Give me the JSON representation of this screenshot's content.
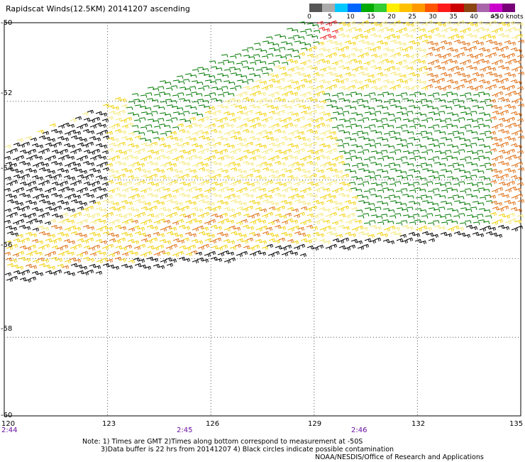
{
  "title": "Rapidscat Winds(12.5KM) 20141207 ascending",
  "legend": {
    "colors": [
      "#555555",
      "#aaaaaa",
      "#00c8ff",
      "#0064ff",
      "#00aa00",
      "#33cc33",
      "#ffee00",
      "#ffc000",
      "#ff9900",
      "#ff5500",
      "#ff1a1a",
      "#cc0000",
      "#8b4513",
      "#aa66aa",
      "#cc00cc",
      "#770077"
    ],
    "labels": [
      "0",
      "5",
      "10",
      "15",
      "20",
      "25",
      "30",
      "35",
      "40",
      "45",
      ">50 knots"
    ]
  },
  "axes": {
    "lon_ticks": [
      "120",
      "123",
      "126",
      "129",
      "132",
      "135"
    ],
    "lat_ticks": [
      "-50",
      "-52",
      "-54",
      "-56",
      "-58",
      "-60"
    ]
  },
  "times": [
    "2:44",
    "2:45",
    "2:46"
  ],
  "notes": [
    "Note: 1) Times are GMT 2)Times along bottom correspond to measurement at -50S",
    "3)Data buffer is 22 hrs from 20141207 4) Black circles indicate possible contamination"
  ],
  "credit": "NOAA/NESDIS/Office of Research and Applications",
  "wind_colors": {
    "light_yellow": "#f5e87a",
    "yellow": "#f2d10a",
    "orange": "#e06d10",
    "green": "#007a00",
    "black": "#000000",
    "red": "#ee2222"
  }
}
